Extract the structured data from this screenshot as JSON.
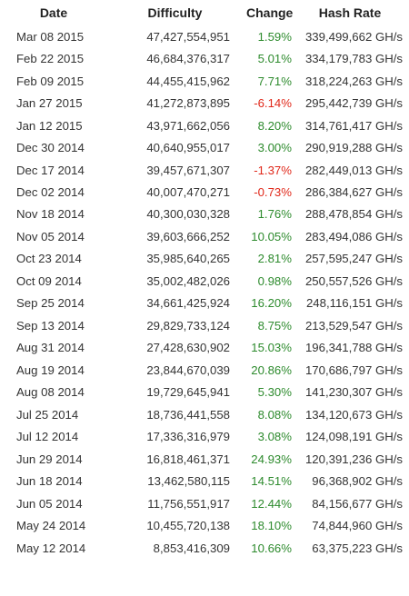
{
  "header": {
    "date": "Date",
    "difficulty": "Difficulty",
    "change": "Change",
    "hash_rate": "Hash Rate"
  },
  "colors": {
    "positive": "#2e8b2e",
    "negative": "#e0281a",
    "text": "#333333"
  },
  "rows": [
    {
      "date": "Mar 08 2015",
      "difficulty": "47,427,554,951",
      "change": "1.59%",
      "hash_rate": "339,499,662 GH/s"
    },
    {
      "date": "Feb 22 2015",
      "difficulty": "46,684,376,317",
      "change": "5.01%",
      "hash_rate": "334,179,783 GH/s"
    },
    {
      "date": "Feb 09 2015",
      "difficulty": "44,455,415,962",
      "change": "7.71%",
      "hash_rate": "318,224,263 GH/s"
    },
    {
      "date": "Jan 27 2015",
      "difficulty": "41,272,873,895",
      "change": "-6.14%",
      "hash_rate": "295,442,739 GH/s"
    },
    {
      "date": "Jan 12 2015",
      "difficulty": "43,971,662,056",
      "change": "8.20%",
      "hash_rate": "314,761,417 GH/s"
    },
    {
      "date": "Dec 30 2014",
      "difficulty": "40,640,955,017",
      "change": "3.00%",
      "hash_rate": "290,919,288 GH/s"
    },
    {
      "date": "Dec 17 2014",
      "difficulty": "39,457,671,307",
      "change": "-1.37%",
      "hash_rate": "282,449,013 GH/s"
    },
    {
      "date": "Dec 02 2014",
      "difficulty": "40,007,470,271",
      "change": "-0.73%",
      "hash_rate": "286,384,627 GH/s"
    },
    {
      "date": "Nov 18 2014",
      "difficulty": "40,300,030,328",
      "change": "1.76%",
      "hash_rate": "288,478,854 GH/s"
    },
    {
      "date": "Nov 05 2014",
      "difficulty": "39,603,666,252",
      "change": "10.05%",
      "hash_rate": "283,494,086 GH/s"
    },
    {
      "date": "Oct 23 2014",
      "difficulty": "35,985,640,265",
      "change": "2.81%",
      "hash_rate": "257,595,247 GH/s"
    },
    {
      "date": "Oct 09 2014",
      "difficulty": "35,002,482,026",
      "change": "0.98%",
      "hash_rate": "250,557,526 GH/s"
    },
    {
      "date": "Sep 25 2014",
      "difficulty": "34,661,425,924",
      "change": "16.20%",
      "hash_rate": "248,116,151 GH/s"
    },
    {
      "date": "Sep 13 2014",
      "difficulty": "29,829,733,124",
      "change": "8.75%",
      "hash_rate": "213,529,547 GH/s"
    },
    {
      "date": "Aug 31 2014",
      "difficulty": "27,428,630,902",
      "change": "15.03%",
      "hash_rate": "196,341,788 GH/s"
    },
    {
      "date": "Aug 19 2014",
      "difficulty": "23,844,670,039",
      "change": "20.86%",
      "hash_rate": "170,686,797 GH/s"
    },
    {
      "date": "Aug 08 2014",
      "difficulty": "19,729,645,941",
      "change": "5.30%",
      "hash_rate": "141,230,307 GH/s"
    },
    {
      "date": "Jul 25 2014",
      "difficulty": "18,736,441,558",
      "change": "8.08%",
      "hash_rate": "134,120,673 GH/s"
    },
    {
      "date": "Jul 12 2014",
      "difficulty": "17,336,316,979",
      "change": "3.08%",
      "hash_rate": "124,098,191 GH/s"
    },
    {
      "date": "Jun 29 2014",
      "difficulty": "16,818,461,371",
      "change": "24.93%",
      "hash_rate": "120,391,236 GH/s"
    },
    {
      "date": "Jun 18 2014",
      "difficulty": "13,462,580,115",
      "change": "14.51%",
      "hash_rate": "96,368,902 GH/s"
    },
    {
      "date": "Jun 05 2014",
      "difficulty": "11,756,551,917",
      "change": "12.44%",
      "hash_rate": "84,156,677 GH/s"
    },
    {
      "date": "May 24 2014",
      "difficulty": "10,455,720,138",
      "change": "18.10%",
      "hash_rate": "74,844,960 GH/s"
    },
    {
      "date": "May 12 2014",
      "difficulty": "8,853,416,309",
      "change": "10.66%",
      "hash_rate": "63,375,223 GH/s"
    }
  ]
}
